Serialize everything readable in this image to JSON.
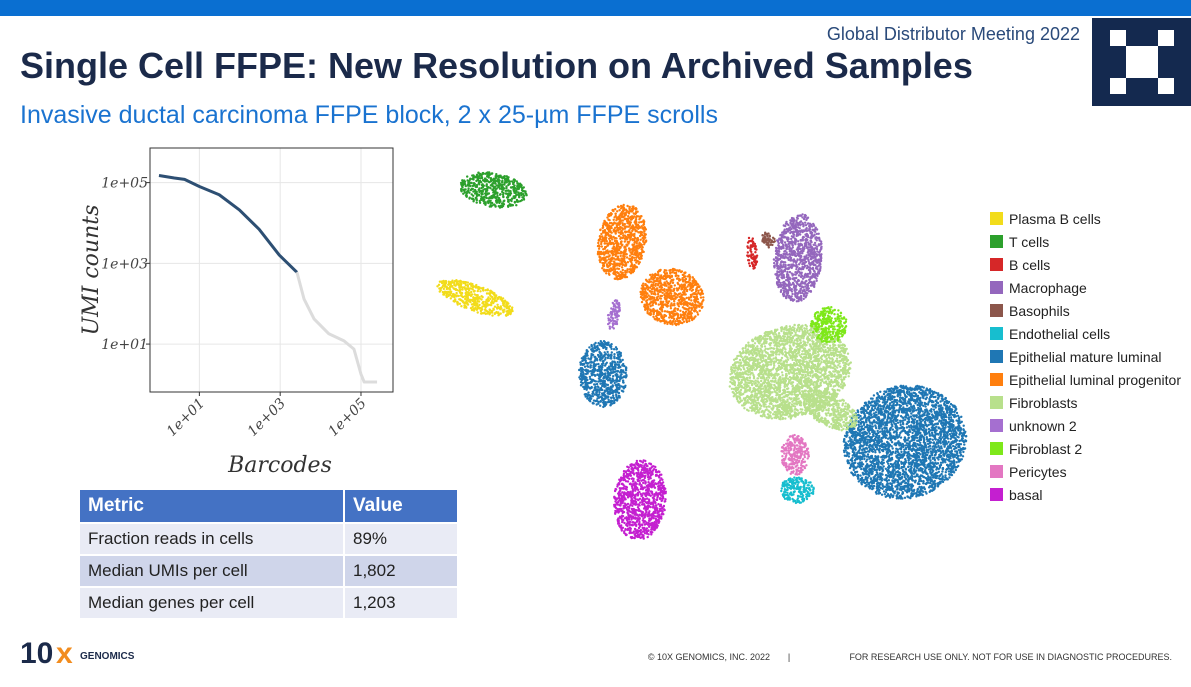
{
  "header": {
    "event": "Global Distributor Meeting 2022",
    "title": "Single Cell FFPE: New Resolution on Archived Samples",
    "subtitle": "Invasive ductal carcinoma FFPE block, 2 x 25-µm FFPE scrolls"
  },
  "chart_data": [
    {
      "type": "line",
      "xlabel": "Barcodes",
      "ylabel": "UMI counts",
      "log_x": true,
      "log_y": true,
      "grid": true,
      "xlim": [
        0.6,
        620000
      ],
      "ylim": [
        0.65,
        720000
      ],
      "xticks": [
        {
          "value": 10,
          "label": "1e+01"
        },
        {
          "value": 1000,
          "label": "1e+03"
        },
        {
          "value": 100000,
          "label": "1e+05"
        }
      ],
      "yticks": [
        {
          "value": 10,
          "label": "1e+01"
        },
        {
          "value": 1000,
          "label": "1e+03"
        },
        {
          "value": 100000,
          "label": "1e+05"
        }
      ],
      "series": [
        {
          "color": "#2d4f73",
          "x": [
            1,
            2.4,
            4.3,
            10,
            31,
            98,
            300,
            950,
            2600
          ],
          "values": [
            150000,
            130000,
            120000,
            80000,
            50000,
            21000,
            7000,
            1600,
            600
          ]
        },
        {
          "color": "#dcdcdc",
          "x": [
            2600,
            3900,
            6900,
            16000,
            38000,
            67000,
            100000,
            120000,
            250000
          ],
          "values": [
            600,
            130,
            42,
            18,
            12,
            7.5,
            1.8,
            1.15,
            1.15
          ]
        }
      ]
    },
    {
      "type": "scatter",
      "legend": "right",
      "series": [
        {
          "name": "Plasma B cells",
          "color": "#f2dc1b"
        },
        {
          "name": "T cells",
          "color": "#2ca02c"
        },
        {
          "name": "B cells",
          "color": "#d62728"
        },
        {
          "name": "Macrophage",
          "color": "#9467bd"
        },
        {
          "name": "Basophils",
          "color": "#8c564b"
        },
        {
          "name": "Endothelial cells",
          "color": "#17becf"
        },
        {
          "name": "Epithelial mature luminal",
          "color": "#1f77b4"
        },
        {
          "name": "Epithelial luminal progenitor",
          "color": "#ff7f0e"
        },
        {
          "name": "Fibroblasts",
          "color": "#b8e08c"
        },
        {
          "name": "unknown 2",
          "color": "#a56fd0"
        },
        {
          "name": "Fibroblast 2",
          "color": "#7ee81a"
        },
        {
          "name": "Pericytes",
          "color": "#e377c2"
        },
        {
          "name": "basal",
          "color": "#c41fd0"
        }
      ]
    }
  ],
  "table": {
    "header": [
      "Metric",
      "Value"
    ],
    "rows": [
      [
        "Fraction reads in cells",
        "89%"
      ],
      [
        "Median UMIs per cell",
        "1,802"
      ],
      [
        "Median genes per cell",
        "1,203"
      ]
    ]
  },
  "footer": {
    "logo_num": "10",
    "logo_x": "x",
    "logo_text": "GENOMICS",
    "copyright": "© 10X GENOMICS, INC. 2022",
    "separator": "|",
    "disclaimer": "FOR RESEARCH USE ONLY. NOT FOR USE IN DIAGNOSTIC PROCEDURES."
  }
}
